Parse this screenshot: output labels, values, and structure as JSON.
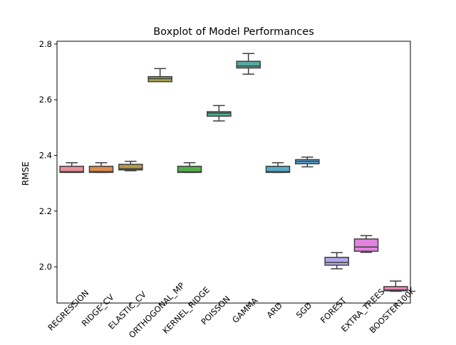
{
  "chart_data": {
    "type": "boxplot",
    "title": "Boxplot of Model Performances",
    "xlabel": "",
    "ylabel": "RMSE",
    "ylim": [
      1.87,
      2.81
    ],
    "yticks": [
      2.0,
      2.2,
      2.4,
      2.6,
      2.8
    ],
    "ytick_labels": [
      "2.0",
      "2.2",
      "2.4",
      "2.6",
      "2.8"
    ],
    "grid": false,
    "categories": [
      "REGRESSION",
      "RIDGE_CV",
      "ELASTIC_CV",
      "ORTHOGONAL_MP",
      "KERNEL_RIDGE",
      "POISSON",
      "GAMMA",
      "ARD",
      "SGD",
      "FOREST",
      "EXTRA_TREES",
      "BOOSTER100K"
    ],
    "category_labels": [
      "REGRESSION",
      "RIDGE_CV",
      "ELASTIC_CV",
      "ORTHOGONAL_MP",
      "KERNEL_RIDGE",
      "POISSON",
      "GAMMA",
      "ARD",
      "SGD",
      "FOREST",
      "EXTRA_TREES",
      "BOOSTER100K"
    ],
    "colors": [
      "#e8909a",
      "#df8b4f",
      "#b89a43",
      "#a8a44e",
      "#56ad4f",
      "#55ae8e",
      "#55aaa0",
      "#58abc6",
      "#5aa7dd",
      "#b0a8e8",
      "#e383e0",
      "#e789b8"
    ],
    "boxes": [
      {
        "min": 2.339,
        "q1": 2.339,
        "median": 2.342,
        "q3": 2.361,
        "max": 2.374
      },
      {
        "min": 2.339,
        "q1": 2.339,
        "median": 2.342,
        "q3": 2.361,
        "max": 2.374
      },
      {
        "min": 2.345,
        "q1": 2.348,
        "median": 2.352,
        "q3": 2.368,
        "max": 2.379
      },
      {
        "min": 2.665,
        "q1": 2.665,
        "median": 2.676,
        "q3": 2.683,
        "max": 2.712
      },
      {
        "min": 2.339,
        "q1": 2.339,
        "median": 2.341,
        "q3": 2.361,
        "max": 2.374
      },
      {
        "min": 2.524,
        "q1": 2.541,
        "median": 2.552,
        "q3": 2.557,
        "max": 2.579
      },
      {
        "min": 2.692,
        "q1": 2.714,
        "median": 2.721,
        "q3": 2.738,
        "max": 2.766
      },
      {
        "min": 2.339,
        "q1": 2.339,
        "median": 2.342,
        "q3": 2.361,
        "max": 2.374
      },
      {
        "min": 2.359,
        "q1": 2.37,
        "median": 2.379,
        "q3": 2.385,
        "max": 2.394
      },
      {
        "min": 1.993,
        "q1": 2.006,
        "median": 2.016,
        "q3": 2.034,
        "max": 2.051
      },
      {
        "min": 2.052,
        "q1": 2.056,
        "median": 2.071,
        "q3": 2.1,
        "max": 2.112
      },
      {
        "min": 1.912,
        "q1": 1.914,
        "median": 1.917,
        "q3": 1.929,
        "max": 1.949
      }
    ]
  }
}
